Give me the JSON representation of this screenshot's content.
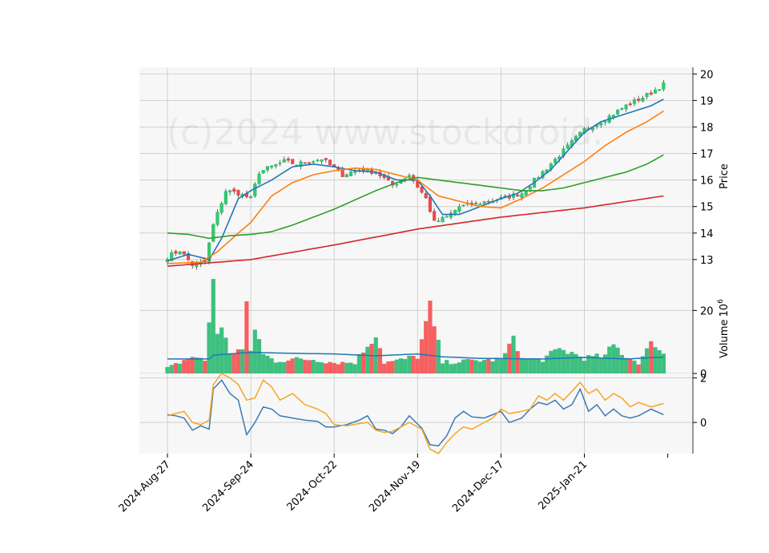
{
  "watermark": "(c)2024 www.stockdroid.",
  "colors": {
    "up": "#2ecc71",
    "down": "#f0484e",
    "wick": "#444444",
    "ma1": "#1f77b4",
    "ma2": "#ff7f0e",
    "ma3": "#2ca02c",
    "ma4": "#d62728",
    "vol_up": "#3fbf7f",
    "vol_down": "#f56060",
    "vol_ma": "#1f77b4",
    "osc1": "#3a7bb5",
    "osc2": "#f5a623",
    "panel_bg": "#f7f7f7",
    "grid": "#d0d0d0"
  },
  "chart_data": [
    {
      "type": "candlestick",
      "panel": "price",
      "ylabel": "Price",
      "ylim": [
        12.15,
        20.25
      ],
      "yticks": [
        13,
        14,
        15,
        16,
        17,
        18,
        19,
        20
      ],
      "grid": true,
      "x_tick_labels": [
        "2024-Aug-27",
        "2024-Sep-24",
        "2024-Oct-22",
        "2024-Nov-19",
        "2024-Dec-17",
        "2025-Jan-21"
      ],
      "x_tick_index": [
        0,
        20,
        40,
        60,
        80,
        100
      ],
      "n": 120,
      "close_keypoints": [
        [
          0,
          13.1
        ],
        [
          3,
          13.35
        ],
        [
          6,
          12.8
        ],
        [
          9,
          12.9
        ],
        [
          11,
          14.3
        ],
        [
          14,
          15.6
        ],
        [
          17,
          15.5
        ],
        [
          20,
          15.3
        ],
        [
          22,
          16.3
        ],
        [
          25,
          16.5
        ],
        [
          28,
          16.7
        ],
        [
          31,
          16.6
        ],
        [
          37,
          16.8
        ],
        [
          42,
          16.2
        ],
        [
          46,
          16.4
        ],
        [
          50,
          16.3
        ],
        [
          54,
          15.8
        ],
        [
          58,
          16.2
        ],
        [
          62,
          15.3
        ],
        [
          64,
          14.4
        ],
        [
          67,
          14.6
        ],
        [
          70,
          15.0
        ],
        [
          74,
          15.1
        ],
        [
          80,
          15.3
        ],
        [
          85,
          15.5
        ],
        [
          90,
          16.3
        ],
        [
          95,
          17.1
        ],
        [
          100,
          17.9
        ],
        [
          105,
          18.3
        ],
        [
          110,
          18.8
        ],
        [
          115,
          19.2
        ],
        [
          119,
          19.6
        ]
      ],
      "moving_averages": [
        {
          "name": "MA1",
          "color_key": "ma1",
          "points": [
            [
              0,
              12.95
            ],
            [
              5,
              13.2
            ],
            [
              10,
              13.0
            ],
            [
              13,
              13.8
            ],
            [
              17,
              15.3
            ],
            [
              20,
              15.6
            ],
            [
              25,
              16.0
            ],
            [
              30,
              16.5
            ],
            [
              35,
              16.6
            ],
            [
              40,
              16.5
            ],
            [
              45,
              16.35
            ],
            [
              50,
              16.3
            ],
            [
              55,
              16.0
            ],
            [
              60,
              16.0
            ],
            [
              63,
              15.4
            ],
            [
              66,
              14.7
            ],
            [
              70,
              14.7
            ],
            [
              75,
              15.0
            ],
            [
              80,
              15.3
            ],
            [
              84,
              15.5
            ],
            [
              88,
              15.9
            ],
            [
              92,
              16.4
            ],
            [
              96,
              17.1
            ],
            [
              100,
              17.8
            ],
            [
              104,
              18.2
            ],
            [
              108,
              18.4
            ],
            [
              112,
              18.6
            ],
            [
              116,
              18.8
            ],
            [
              119,
              19.05
            ]
          ]
        },
        {
          "name": "MA2",
          "color_key": "ma2",
          "points": [
            [
              0,
              12.85
            ],
            [
              8,
              12.9
            ],
            [
              12,
              13.3
            ],
            [
              17,
              14.0
            ],
            [
              20,
              14.4
            ],
            [
              25,
              15.4
            ],
            [
              30,
              15.9
            ],
            [
              35,
              16.2
            ],
            [
              40,
              16.35
            ],
            [
              45,
              16.45
            ],
            [
              50,
              16.4
            ],
            [
              55,
              16.2
            ],
            [
              60,
              16.0
            ],
            [
              65,
              15.4
            ],
            [
              70,
              15.2
            ],
            [
              75,
              15.0
            ],
            [
              80,
              14.95
            ],
            [
              85,
              15.3
            ],
            [
              90,
              15.7
            ],
            [
              95,
              16.2
            ],
            [
              100,
              16.7
            ],
            [
              105,
              17.3
            ],
            [
              110,
              17.8
            ],
            [
              115,
              18.2
            ],
            [
              119,
              18.6
            ]
          ]
        },
        {
          "name": "MA3",
          "color_key": "ma3",
          "points": [
            [
              0,
              14.0
            ],
            [
              5,
              13.95
            ],
            [
              10,
              13.8
            ],
            [
              15,
              13.9
            ],
            [
              20,
              13.95
            ],
            [
              25,
              14.05
            ],
            [
              30,
              14.3
            ],
            [
              35,
              14.6
            ],
            [
              40,
              14.9
            ],
            [
              45,
              15.25
            ],
            [
              50,
              15.6
            ],
            [
              55,
              15.9
            ],
            [
              60,
              16.1
            ],
            [
              65,
              16.0
            ],
            [
              70,
              15.9
            ],
            [
              75,
              15.8
            ],
            [
              80,
              15.7
            ],
            [
              85,
              15.6
            ],
            [
              90,
              15.6
            ],
            [
              95,
              15.7
            ],
            [
              100,
              15.9
            ],
            [
              105,
              16.1
            ],
            [
              110,
              16.3
            ],
            [
              115,
              16.6
            ],
            [
              119,
              16.95
            ]
          ]
        },
        {
          "name": "MA4",
          "color_key": "ma4",
          "points": [
            [
              0,
              12.75
            ],
            [
              20,
              13.0
            ],
            [
              40,
              13.55
            ],
            [
              60,
              14.15
            ],
            [
              80,
              14.6
            ],
            [
              100,
              14.95
            ],
            [
              119,
              15.4
            ]
          ]
        }
      ]
    },
    {
      "type": "bar",
      "panel": "volume",
      "ylabel": "Volume",
      "ylabel_exponent": "6",
      "ylim": [
        0,
        29
      ],
      "yticks": [
        0,
        20
      ],
      "grid": true,
      "volume_keypoints": [
        [
          0,
          1.8
        ],
        [
          3,
          3.5
        ],
        [
          6,
          5.5
        ],
        [
          9,
          4.0
        ],
        [
          11,
          30.0
        ],
        [
          12,
          14.0
        ],
        [
          13,
          13.5
        ],
        [
          15,
          7.0
        ],
        [
          18,
          7.5
        ],
        [
          19,
          19.5
        ],
        [
          20,
          7.0
        ],
        [
          21,
          15.0
        ],
        [
          23,
          6.0
        ],
        [
          26,
          4.0
        ],
        [
          30,
          4.5
        ],
        [
          35,
          4.5
        ],
        [
          40,
          3.5
        ],
        [
          45,
          3.5
        ],
        [
          50,
          13.0
        ],
        [
          52,
          3.5
        ],
        [
          55,
          4.0
        ],
        [
          60,
          5.5
        ],
        [
          63,
          20.0
        ],
        [
          66,
          3.5
        ],
        [
          70,
          3.8
        ],
        [
          75,
          4.2
        ],
        [
          80,
          4.5
        ],
        [
          82,
          8.0
        ],
        [
          83,
          13.0
        ],
        [
          85,
          4.5
        ],
        [
          90,
          4.5
        ],
        [
          94,
          7.5
        ],
        [
          96,
          7.0
        ],
        [
          100,
          5.0
        ],
        [
          105,
          5.5
        ],
        [
          107,
          9.0
        ],
        [
          110,
          5.5
        ],
        [
          113,
          3.5
        ],
        [
          116,
          9.0
        ],
        [
          117,
          10.0
        ],
        [
          119,
          6.0
        ]
      ],
      "volume_ma": [
        [
          0,
          4.6
        ],
        [
          10,
          4.6
        ],
        [
          11,
          5.8
        ],
        [
          20,
          6.7
        ],
        [
          30,
          6.4
        ],
        [
          40,
          6.2
        ],
        [
          50,
          5.6
        ],
        [
          60,
          6.2
        ],
        [
          66,
          5.3
        ],
        [
          75,
          4.8
        ],
        [
          90,
          4.6
        ],
        [
          100,
          5.1
        ],
        [
          110,
          4.6
        ],
        [
          119,
          5.2
        ]
      ]
    },
    {
      "type": "line",
      "panel": "oscillator",
      "ylim": [
        -1.4,
        2.2
      ],
      "yticks": [
        0,
        2
      ],
      "grid": true,
      "series": [
        {
          "color_key": "osc1",
          "points": [
            [
              0,
              0.35
            ],
            [
              2,
              0.3
            ],
            [
              4,
              0.2
            ],
            [
              6,
              -0.35
            ],
            [
              8,
              -0.15
            ],
            [
              10,
              -0.3
            ],
            [
              11,
              1.5
            ],
            [
              13,
              1.9
            ],
            [
              15,
              1.3
            ],
            [
              17,
              1.0
            ],
            [
              19,
              -0.55
            ],
            [
              21,
              0.0
            ],
            [
              23,
              0.7
            ],
            [
              25,
              0.6
            ],
            [
              27,
              0.3
            ],
            [
              30,
              0.2
            ],
            [
              33,
              0.1
            ],
            [
              36,
              0.05
            ],
            [
              38,
              -0.2
            ],
            [
              40,
              -0.2
            ],
            [
              43,
              -0.1
            ],
            [
              46,
              0.1
            ],
            [
              48,
              0.3
            ],
            [
              50,
              -0.3
            ],
            [
              52,
              -0.35
            ],
            [
              54,
              -0.5
            ],
            [
              56,
              -0.2
            ],
            [
              58,
              0.3
            ],
            [
              61,
              -0.25
            ],
            [
              63,
              -1.0
            ],
            [
              65,
              -1.05
            ],
            [
              67,
              -0.6
            ],
            [
              69,
              0.2
            ],
            [
              71,
              0.5
            ],
            [
              73,
              0.25
            ],
            [
              76,
              0.2
            ],
            [
              78,
              0.35
            ],
            [
              80,
              0.5
            ],
            [
              82,
              0.0
            ],
            [
              85,
              0.2
            ],
            [
              87,
              0.6
            ],
            [
              89,
              0.9
            ],
            [
              91,
              0.8
            ],
            [
              93,
              1.0
            ],
            [
              95,
              0.6
            ],
            [
              97,
              0.8
            ],
            [
              99,
              1.5
            ],
            [
              101,
              0.5
            ],
            [
              103,
              0.8
            ],
            [
              105,
              0.3
            ],
            [
              107,
              0.6
            ],
            [
              109,
              0.3
            ],
            [
              111,
              0.2
            ],
            [
              113,
              0.3
            ],
            [
              116,
              0.6
            ],
            [
              119,
              0.35
            ]
          ]
        },
        {
          "color_key": "osc2",
          "points": [
            [
              0,
              0.3
            ],
            [
              2,
              0.4
            ],
            [
              4,
              0.5
            ],
            [
              6,
              0.0
            ],
            [
              8,
              -0.1
            ],
            [
              10,
              0.1
            ],
            [
              11,
              1.7
            ],
            [
              13,
              2.2
            ],
            [
              15,
              2.0
            ],
            [
              17,
              1.7
            ],
            [
              19,
              1.0
            ],
            [
              21,
              1.1
            ],
            [
              23,
              1.9
            ],
            [
              25,
              1.6
            ],
            [
              27,
              1.0
            ],
            [
              30,
              1.3
            ],
            [
              33,
              0.8
            ],
            [
              36,
              0.6
            ],
            [
              38,
              0.4
            ],
            [
              40,
              -0.1
            ],
            [
              43,
              -0.15
            ],
            [
              46,
              -0.05
            ],
            [
              48,
              0.0
            ],
            [
              50,
              -0.35
            ],
            [
              52,
              -0.45
            ],
            [
              54,
              -0.4
            ],
            [
              56,
              -0.2
            ],
            [
              58,
              0.0
            ],
            [
              61,
              -0.3
            ],
            [
              63,
              -1.2
            ],
            [
              65,
              -1.4
            ],
            [
              67,
              -0.9
            ],
            [
              69,
              -0.5
            ],
            [
              71,
              -0.2
            ],
            [
              73,
              -0.3
            ],
            [
              76,
              0.0
            ],
            [
              78,
              0.2
            ],
            [
              80,
              0.6
            ],
            [
              82,
              0.4
            ],
            [
              85,
              0.5
            ],
            [
              87,
              0.6
            ],
            [
              89,
              1.2
            ],
            [
              91,
              1.0
            ],
            [
              93,
              1.3
            ],
            [
              95,
              1.0
            ],
            [
              97,
              1.4
            ],
            [
              99,
              1.8
            ],
            [
              101,
              1.3
            ],
            [
              103,
              1.5
            ],
            [
              105,
              1.0
            ],
            [
              107,
              1.3
            ],
            [
              109,
              1.1
            ],
            [
              111,
              0.7
            ],
            [
              113,
              0.9
            ],
            [
              116,
              0.7
            ],
            [
              119,
              0.85
            ]
          ]
        }
      ]
    }
  ]
}
